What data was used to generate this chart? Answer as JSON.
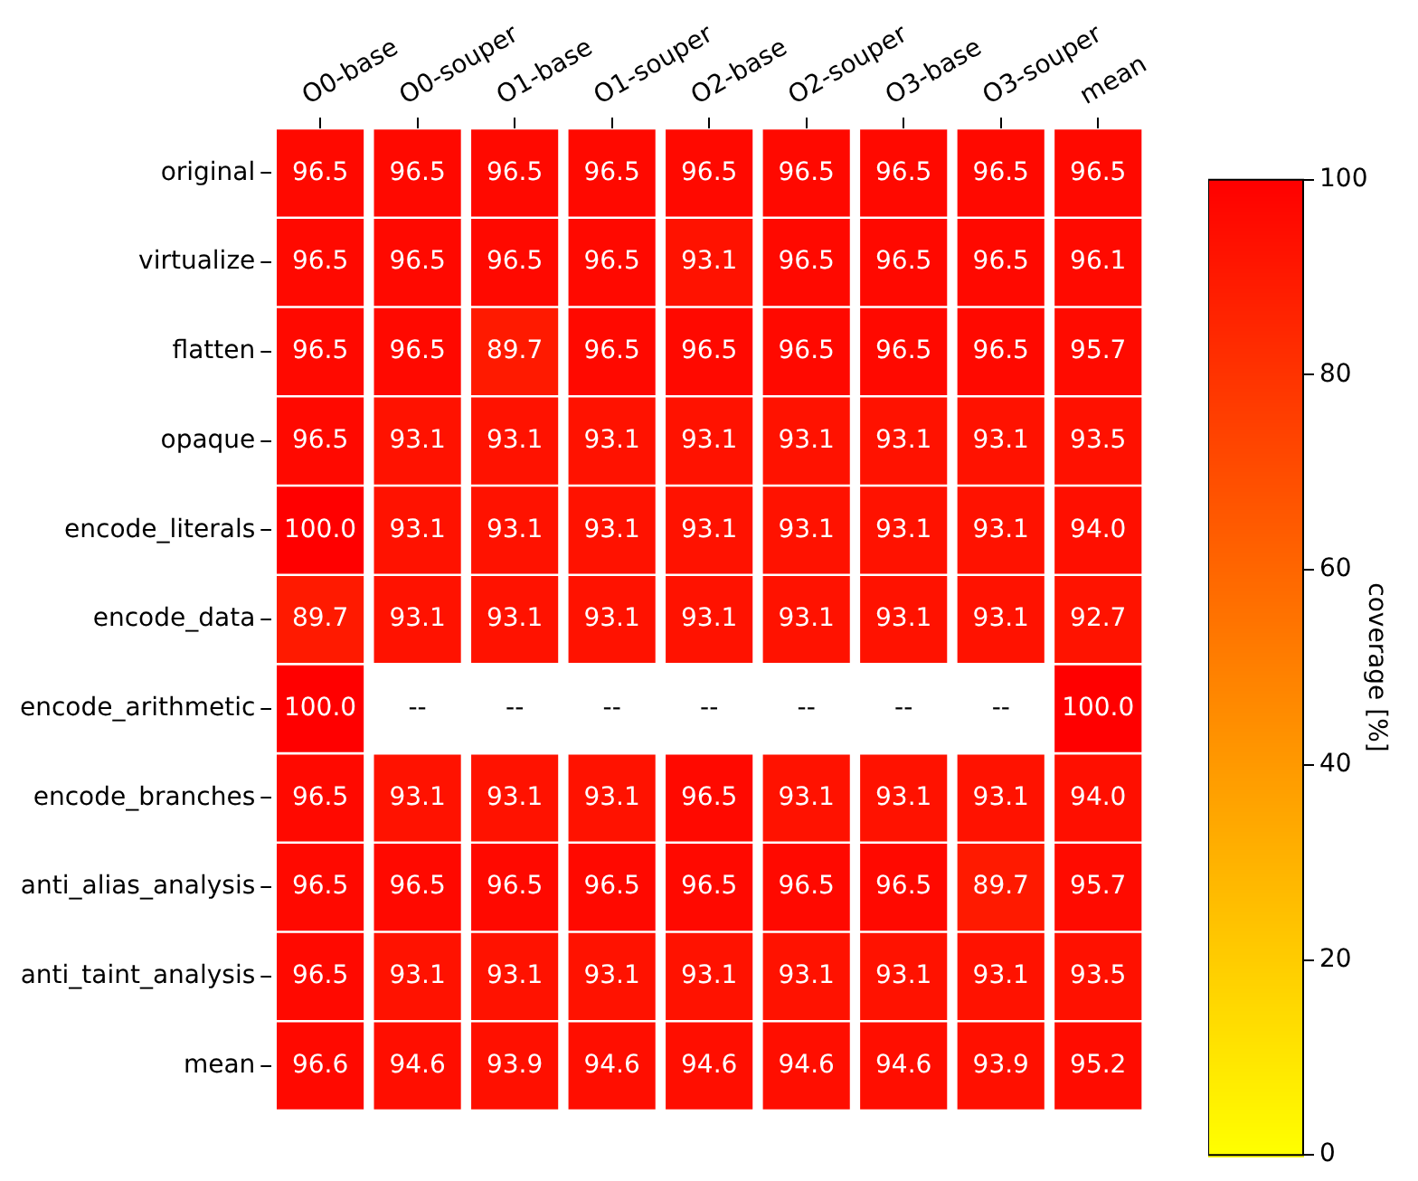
{
  "chart_data": {
    "type": "heatmap",
    "categories": [
      "O0-base",
      "O0-souper",
      "O1-base",
      "O1-souper",
      "O2-base",
      "O2-souper",
      "O3-base",
      "O3-souper",
      "mean"
    ],
    "y_categories": [
      "original",
      "virtualize",
      "flatten",
      "opaque",
      "encode_literals",
      "encode_data",
      "encode_arithmetic",
      "encode_branches",
      "anti_alias_analysis",
      "anti_taint_analysis",
      "mean"
    ],
    "cells": [
      [
        96.5,
        96.5,
        96.5,
        96.5,
        96.5,
        96.5,
        96.5,
        96.5,
        96.5
      ],
      [
        96.5,
        96.5,
        96.5,
        96.5,
        93.1,
        96.5,
        96.5,
        96.5,
        96.1
      ],
      [
        96.5,
        96.5,
        89.7,
        96.5,
        96.5,
        96.5,
        96.5,
        96.5,
        95.7
      ],
      [
        96.5,
        93.1,
        93.1,
        93.1,
        93.1,
        93.1,
        93.1,
        93.1,
        93.5
      ],
      [
        100,
        93.1,
        93.1,
        93.1,
        93.1,
        93.1,
        93.1,
        93.1,
        94.0
      ],
      [
        89.7,
        93.1,
        93.1,
        93.1,
        93.1,
        93.1,
        93.1,
        93.1,
        92.7
      ],
      [
        100,
        null,
        null,
        null,
        null,
        null,
        null,
        null,
        100
      ],
      [
        96.5,
        93.1,
        93.1,
        93.1,
        96.5,
        93.1,
        93.1,
        93.1,
        94.0
      ],
      [
        96.5,
        96.5,
        96.5,
        96.5,
        96.5,
        96.5,
        96.5,
        89.7,
        95.7
      ],
      [
        96.5,
        93.1,
        93.1,
        93.1,
        93.1,
        93.1,
        93.1,
        93.1,
        93.5
      ],
      [
        96.6,
        94.6,
        93.9,
        94.6,
        94.6,
        94.6,
        94.6,
        93.9,
        95.2
      ]
    ],
    "cell_labels": [
      [
        "96.5",
        "96.5",
        "96.5",
        "96.5",
        "96.5",
        "96.5",
        "96.5",
        "96.5",
        "96.5"
      ],
      [
        "96.5",
        "96.5",
        "96.5",
        "96.5",
        "93.1",
        "96.5",
        "96.5",
        "96.5",
        "96.1"
      ],
      [
        "96.5",
        "96.5",
        "89.7",
        "96.5",
        "96.5",
        "96.5",
        "96.5",
        "96.5",
        "95.7"
      ],
      [
        "96.5",
        "93.1",
        "93.1",
        "93.1",
        "93.1",
        "93.1",
        "93.1",
        "93.1",
        "93.5"
      ],
      [
        "100.0",
        "93.1",
        "93.1",
        "93.1",
        "93.1",
        "93.1",
        "93.1",
        "93.1",
        "94.0"
      ],
      [
        "89.7",
        "93.1",
        "93.1",
        "93.1",
        "93.1",
        "93.1",
        "93.1",
        "93.1",
        "92.7"
      ],
      [
        "100.0",
        "--",
        "--",
        "--",
        "--",
        "--",
        "--",
        "--",
        "100.0"
      ],
      [
        "96.5",
        "93.1",
        "93.1",
        "93.1",
        "96.5",
        "93.1",
        "93.1",
        "93.1",
        "94.0"
      ],
      [
        "96.5",
        "96.5",
        "96.5",
        "96.5",
        "96.5",
        "96.5",
        "96.5",
        "89.7",
        "95.7"
      ],
      [
        "96.5",
        "93.1",
        "93.1",
        "93.1",
        "93.1",
        "93.1",
        "93.1",
        "93.1",
        "93.5"
      ],
      [
        "96.6",
        "94.6",
        "93.9",
        "94.6",
        "94.6",
        "94.6",
        "94.6",
        "93.9",
        "95.2"
      ]
    ],
    "clim": [
      0,
      100
    ],
    "cticks": [
      0,
      20,
      40,
      60,
      80,
      100
    ],
    "clabel": "coverage [%]"
  }
}
